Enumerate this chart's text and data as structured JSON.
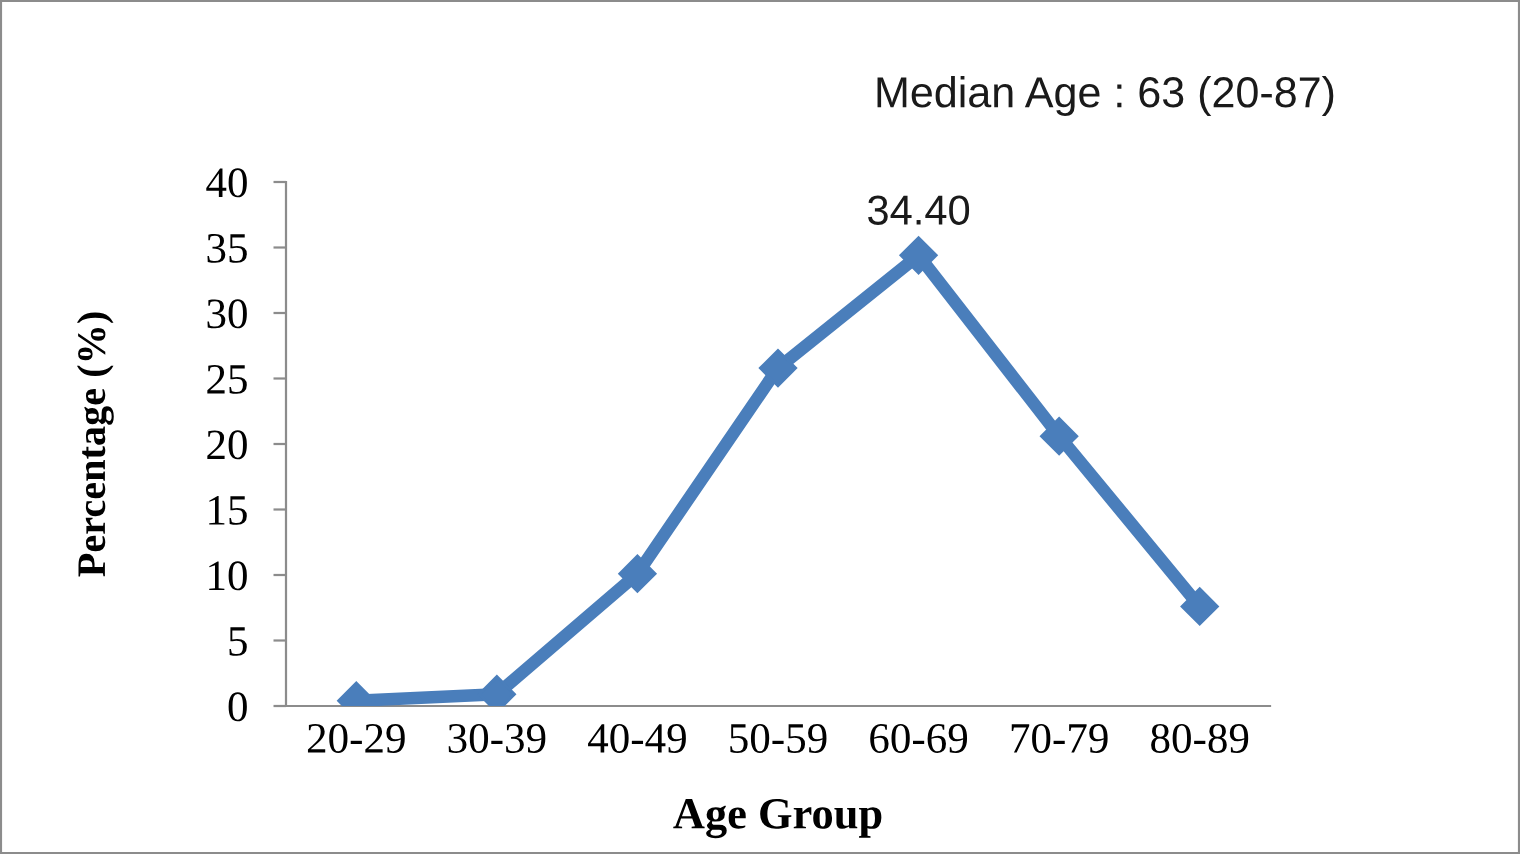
{
  "chart_data": {
    "type": "line",
    "xlabel": "Age Group",
    "ylabel": "Percentage (%)",
    "annotations": [
      "Median Age : 63 (20-87)"
    ],
    "categories": [
      "20-29",
      "30-39",
      "40-49",
      "50-59",
      "60-69",
      "70-79",
      "80-89"
    ],
    "series": [
      {
        "color": "#4a7ebb",
        "values": [
          0.4,
          0.9,
          10.1,
          25.8,
          34.4,
          20.6,
          7.6
        ],
        "value_labels": [
          null,
          null,
          null,
          null,
          "34.40",
          null,
          null
        ]
      }
    ],
    "ylim": [
      0,
      40
    ],
    "yticks": [
      0,
      5,
      10,
      15,
      20,
      25,
      30,
      35,
      40
    ],
    "marker": "diamond",
    "line_style": "solid"
  }
}
